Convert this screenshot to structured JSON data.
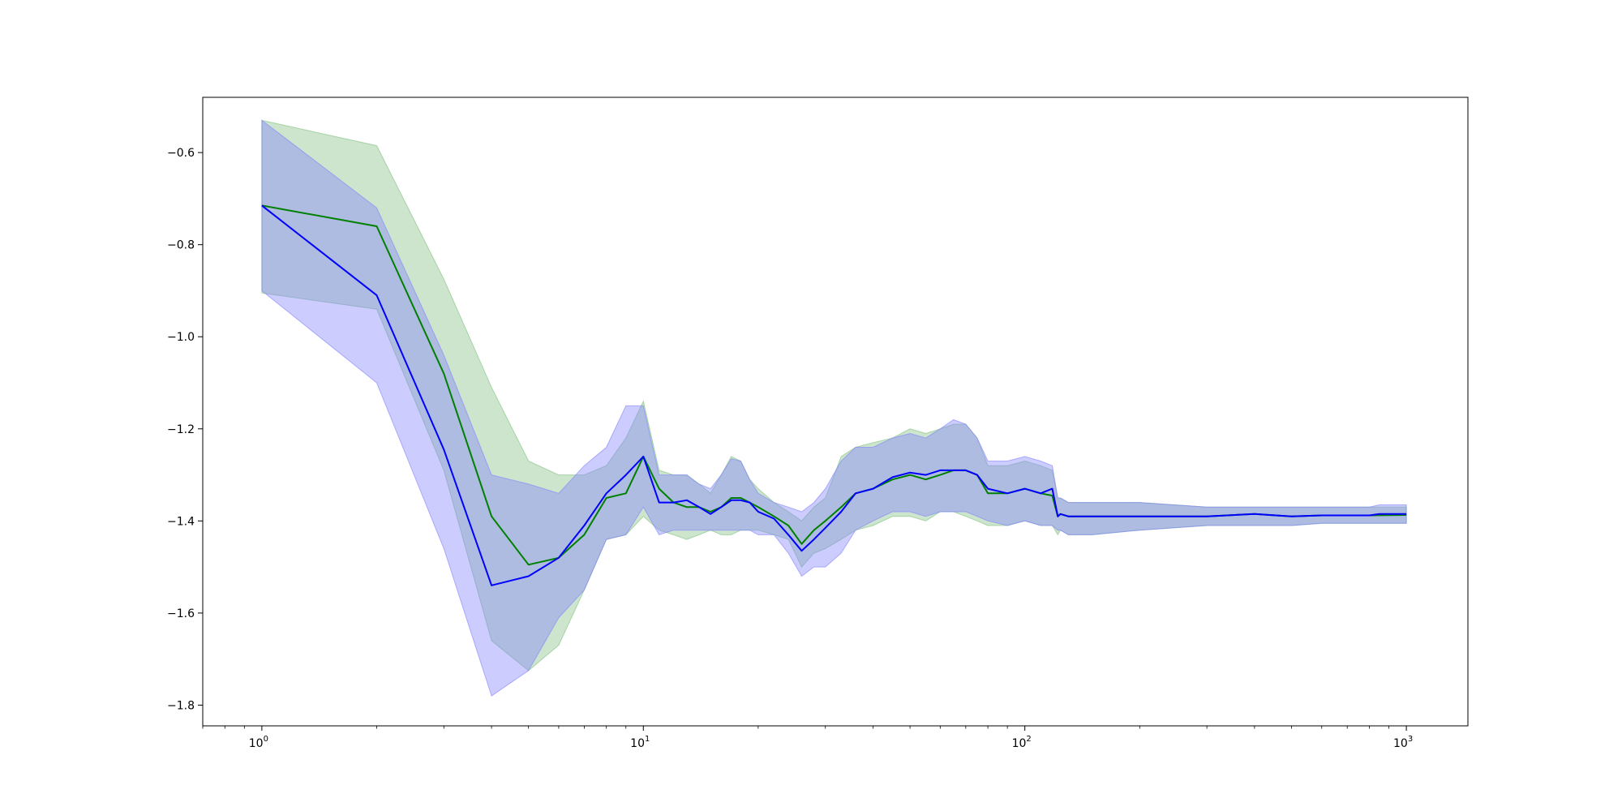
{
  "chart_data": {
    "type": "line",
    "title": "",
    "xlabel": "",
    "ylabel": "",
    "x_scale": "log",
    "xlim": [
      0.7,
      1450
    ],
    "ylim": [
      -1.845,
      -0.48
    ],
    "grid": false,
    "legend": "none",
    "x_ticks": [
      {
        "value": 1,
        "base": "10",
        "exp": "0"
      },
      {
        "value": 10,
        "base": "10",
        "exp": "1"
      },
      {
        "value": 100,
        "base": "10",
        "exp": "2"
      },
      {
        "value": 1000,
        "base": "10",
        "exp": "3"
      }
    ],
    "y_ticks": [
      {
        "value": -0.6,
        "label": "−0.6"
      },
      {
        "value": -0.8,
        "label": "−0.8"
      },
      {
        "value": -1.0,
        "label": "−1.0"
      },
      {
        "value": -1.2,
        "label": "−1.2"
      },
      {
        "value": -1.4,
        "label": "−1.4"
      },
      {
        "value": -1.6,
        "label": "−1.6"
      },
      {
        "value": -1.8,
        "label": "−1.8"
      }
    ],
    "series": [
      {
        "color": "#008000",
        "band_color": "#7fbf7f",
        "x": [
          1,
          2,
          3,
          4,
          5,
          6,
          7,
          8,
          9,
          10,
          11,
          12,
          13,
          14,
          15,
          16,
          17,
          18,
          19,
          20,
          22,
          24,
          26,
          28,
          30,
          33,
          36,
          40,
          45,
          50,
          55,
          60,
          65,
          70,
          75,
          80,
          90,
          100,
          110,
          118,
          122,
          124,
          130,
          150,
          200,
          300,
          400,
          500,
          600,
          800,
          1000
        ],
        "y": [
          -0.715,
          -0.76,
          -1.08,
          -1.39,
          -1.495,
          -1.48,
          -1.43,
          -1.35,
          -1.34,
          -1.26,
          -1.33,
          -1.36,
          -1.37,
          -1.37,
          -1.38,
          -1.37,
          -1.35,
          -1.35,
          -1.36,
          -1.37,
          -1.39,
          -1.41,
          -1.45,
          -1.42,
          -1.4,
          -1.37,
          -1.34,
          -1.33,
          -1.31,
          -1.3,
          -1.31,
          -1.3,
          -1.29,
          -1.29,
          -1.3,
          -1.34,
          -1.34,
          -1.33,
          -1.34,
          -1.345,
          -1.39,
          -1.385,
          -1.39,
          -1.39,
          -1.39,
          -1.39,
          -1.385,
          -1.39,
          -1.388,
          -1.388,
          -1.387
        ],
        "lower": [
          -0.905,
          -0.94,
          -1.29,
          -1.66,
          -1.725,
          -1.67,
          -1.55,
          -1.44,
          -1.43,
          -1.39,
          -1.42,
          -1.43,
          -1.44,
          -1.43,
          -1.42,
          -1.43,
          -1.43,
          -1.42,
          -1.42,
          -1.42,
          -1.43,
          -1.44,
          -1.5,
          -1.47,
          -1.46,
          -1.44,
          -1.42,
          -1.41,
          -1.39,
          -1.39,
          -1.4,
          -1.38,
          -1.38,
          -1.39,
          -1.4,
          -1.41,
          -1.41,
          -1.4,
          -1.41,
          -1.41,
          -1.43,
          -1.42,
          -1.43,
          -1.43,
          -1.42,
          -1.41,
          -1.41,
          -1.41,
          -1.405,
          -1.405,
          -1.405
        ],
        "upper": [
          -0.53,
          -0.585,
          -0.875,
          -1.11,
          -1.27,
          -1.3,
          -1.3,
          -1.28,
          -1.22,
          -1.14,
          -1.29,
          -1.3,
          -1.3,
          -1.32,
          -1.34,
          -1.3,
          -1.26,
          -1.27,
          -1.31,
          -1.33,
          -1.36,
          -1.38,
          -1.4,
          -1.37,
          -1.35,
          -1.26,
          -1.24,
          -1.23,
          -1.22,
          -1.2,
          -1.21,
          -1.2,
          -1.19,
          -1.19,
          -1.22,
          -1.28,
          -1.28,
          -1.27,
          -1.28,
          -1.29,
          -1.35,
          -1.35,
          -1.36,
          -1.36,
          -1.36,
          -1.37,
          -1.37,
          -1.37,
          -1.37,
          -1.37,
          -1.37
        ]
      },
      {
        "color": "#0000ff",
        "band_color": "#8080ff",
        "x": [
          1,
          2,
          3,
          4,
          5,
          6,
          7,
          8,
          9,
          10,
          11,
          12,
          13,
          14,
          15,
          16,
          17,
          18,
          19,
          20,
          22,
          24,
          26,
          28,
          30,
          33,
          36,
          40,
          45,
          50,
          55,
          60,
          65,
          70,
          75,
          80,
          90,
          100,
          110,
          118,
          122,
          124,
          130,
          150,
          200,
          300,
          400,
          500,
          600,
          800,
          850,
          1000
        ],
        "y": [
          -0.715,
          -0.91,
          -1.245,
          -1.54,
          -1.52,
          -1.48,
          -1.41,
          -1.34,
          -1.3,
          -1.26,
          -1.36,
          -1.36,
          -1.355,
          -1.37,
          -1.385,
          -1.37,
          -1.355,
          -1.355,
          -1.36,
          -1.38,
          -1.395,
          -1.43,
          -1.465,
          -1.44,
          -1.415,
          -1.38,
          -1.34,
          -1.33,
          -1.305,
          -1.295,
          -1.3,
          -1.29,
          -1.29,
          -1.29,
          -1.3,
          -1.33,
          -1.34,
          -1.33,
          -1.34,
          -1.33,
          -1.39,
          -1.385,
          -1.39,
          -1.39,
          -1.39,
          -1.39,
          -1.385,
          -1.39,
          -1.388,
          -1.388,
          -1.385,
          -1.385
        ],
        "lower": [
          -0.9,
          -1.1,
          -1.46,
          -1.78,
          -1.725,
          -1.61,
          -1.55,
          -1.44,
          -1.43,
          -1.37,
          -1.43,
          -1.42,
          -1.42,
          -1.42,
          -1.42,
          -1.42,
          -1.42,
          -1.42,
          -1.42,
          -1.43,
          -1.43,
          -1.47,
          -1.52,
          -1.5,
          -1.5,
          -1.47,
          -1.42,
          -1.4,
          -1.38,
          -1.38,
          -1.39,
          -1.38,
          -1.38,
          -1.38,
          -1.39,
          -1.4,
          -1.41,
          -1.4,
          -1.41,
          -1.41,
          -1.42,
          -1.42,
          -1.43,
          -1.43,
          -1.42,
          -1.41,
          -1.41,
          -1.41,
          -1.405,
          -1.405,
          -1.405,
          -1.405
        ],
        "upper": [
          -0.53,
          -0.72,
          -1.04,
          -1.3,
          -1.32,
          -1.34,
          -1.28,
          -1.24,
          -1.15,
          -1.15,
          -1.3,
          -1.3,
          -1.3,
          -1.32,
          -1.33,
          -1.3,
          -1.265,
          -1.27,
          -1.31,
          -1.34,
          -1.36,
          -1.37,
          -1.38,
          -1.36,
          -1.33,
          -1.27,
          -1.24,
          -1.24,
          -1.22,
          -1.21,
          -1.22,
          -1.2,
          -1.18,
          -1.19,
          -1.22,
          -1.27,
          -1.27,
          -1.26,
          -1.27,
          -1.28,
          -1.35,
          -1.35,
          -1.36,
          -1.36,
          -1.36,
          -1.37,
          -1.37,
          -1.37,
          -1.37,
          -1.37,
          -1.365,
          -1.365
        ]
      }
    ]
  }
}
